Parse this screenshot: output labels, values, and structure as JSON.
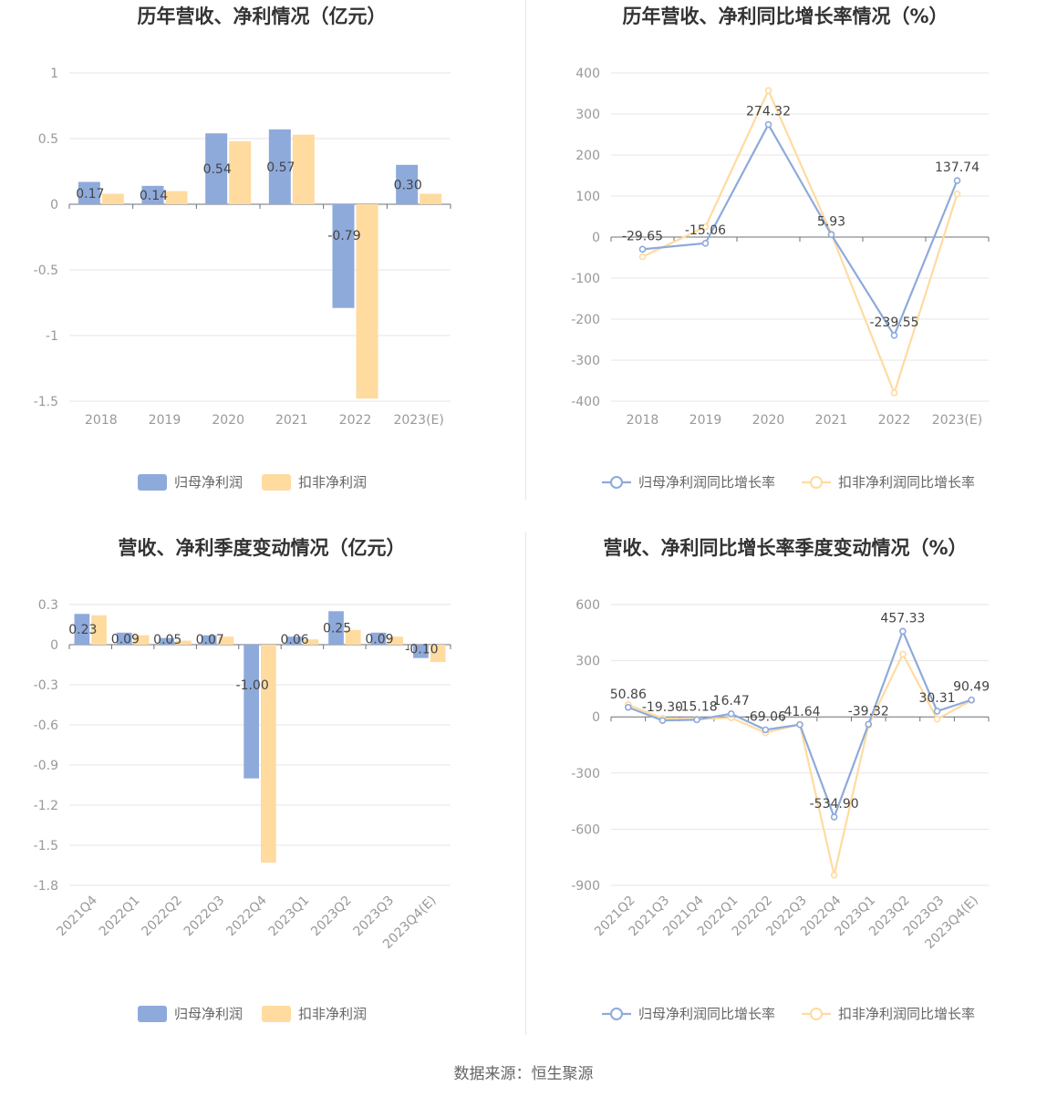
{
  "colors": {
    "blue": "#8eaadb",
    "yellow": "#ffdba0",
    "grid": "#e6e6e6",
    "axis": "#6e7079"
  },
  "icons": {
    "bar_legend": "rounded-rect-swatch",
    "line_legend": "line-circle-marker"
  },
  "source_text": "数据来源：恒生聚源",
  "chart_data": [
    {
      "type": "bar",
      "title": "历年营收、净利情况（亿元）",
      "categories": [
        "2018",
        "2019",
        "2020",
        "2021",
        "2022",
        "2023(E)"
      ],
      "yticks": [
        "1",
        "0.5",
        "0",
        "-0.5",
        "-1",
        "-1.5"
      ],
      "ylim": [
        -1.5,
        1
      ],
      "series": [
        {
          "name": "归母净利润",
          "color": "#8eaadb",
          "values": [
            0.17,
            0.14,
            0.54,
            0.57,
            -0.79,
            0.3
          ],
          "labels": [
            "0.17",
            "0.14",
            "0.54",
            "0.57",
            "-0.79",
            "0.30"
          ]
        },
        {
          "name": "扣非净利润",
          "color": "#ffdba0",
          "values": [
            0.08,
            0.1,
            0.48,
            0.53,
            -1.48,
            0.08
          ]
        }
      ],
      "legend": "bottom"
    },
    {
      "type": "line",
      "title": "历年营收、净利同比增长率情况（%）",
      "categories": [
        "2018",
        "2019",
        "2020",
        "2021",
        "2022",
        "2023(E)"
      ],
      "yticks": [
        "400",
        "300",
        "200",
        "100",
        "0",
        "-100",
        "-200",
        "-300",
        "-400"
      ],
      "ylim": [
        -400,
        400
      ],
      "series": [
        {
          "name": "归母净利润同比增长率",
          "color": "#8eaadb",
          "values": [
            -29.65,
            -15.06,
            274.32,
            5.93,
            -239.55,
            137.74
          ],
          "labels": [
            "-29.65",
            "-15.06",
            "274.32",
            "5.93",
            "-239.55",
            "137.74"
          ]
        },
        {
          "name": "扣非净利润同比增长率",
          "color": "#ffdba0",
          "values": [
            -48,
            25,
            357,
            8,
            -380,
            105
          ]
        }
      ],
      "legend": "bottom"
    },
    {
      "type": "bar",
      "title": "营收、净利季度变动情况（亿元）",
      "categories": [
        "2021Q4",
        "2022Q1",
        "2022Q2",
        "2022Q3",
        "2022Q4",
        "2023Q1",
        "2023Q2",
        "2023Q3",
        "2023Q4(E)"
      ],
      "yticks": [
        "0.3",
        "0",
        "-0.3",
        "-0.6",
        "-0.9",
        "-1.2",
        "-1.5",
        "-1.8"
      ],
      "ylim": [
        -1.8,
        0.3
      ],
      "series": [
        {
          "name": "归母净利润",
          "color": "#8eaadb",
          "values": [
            0.23,
            0.09,
            0.05,
            0.07,
            -1.0,
            0.06,
            0.25,
            0.09,
            -0.1
          ],
          "labels": [
            "0.23",
            "0.09",
            "0.05",
            "0.07",
            "-1.00",
            "0.06",
            "0.25",
            "0.09",
            "-0.10"
          ]
        },
        {
          "name": "扣非净利润",
          "color": "#ffdba0",
          "values": [
            0.22,
            0.07,
            0.03,
            0.06,
            -1.63,
            0.04,
            0.11,
            0.06,
            -0.13
          ]
        }
      ],
      "legend": "bottom"
    },
    {
      "type": "line",
      "title": "营收、净利同比增长率季度变动情况（%）",
      "categories": [
        "2021Q2",
        "2021Q3",
        "2021Q4",
        "2022Q1",
        "2022Q2",
        "2022Q3",
        "2022Q4",
        "2023Q1",
        "2023Q2",
        "2023Q3",
        "2023Q4(E)"
      ],
      "yticks": [
        "600",
        "300",
        "0",
        "-300",
        "-600",
        "-900"
      ],
      "ylim": [
        -900,
        600
      ],
      "series": [
        {
          "name": "归母净利润同比增长率",
          "color": "#8eaadb",
          "values": [
            50.86,
            -19.3,
            -15.18,
            16.47,
            -69.06,
            -41.64,
            -534.9,
            -39.32,
            457.33,
            30.31,
            90.49
          ],
          "labels": [
            "50.86",
            "-19.30",
            "-15.18",
            "16.47",
            "-69.06",
            "-41.64",
            "-534.90",
            "-39.32",
            "457.33",
            "30.31",
            "90.49"
          ]
        },
        {
          "name": "扣非净利润同比增长率",
          "color": "#ffdba0",
          "values": [
            65,
            -8,
            -12,
            -5,
            -85,
            -40,
            -845,
            -45,
            335,
            -12,
            88
          ]
        }
      ],
      "legend": "bottom"
    }
  ]
}
